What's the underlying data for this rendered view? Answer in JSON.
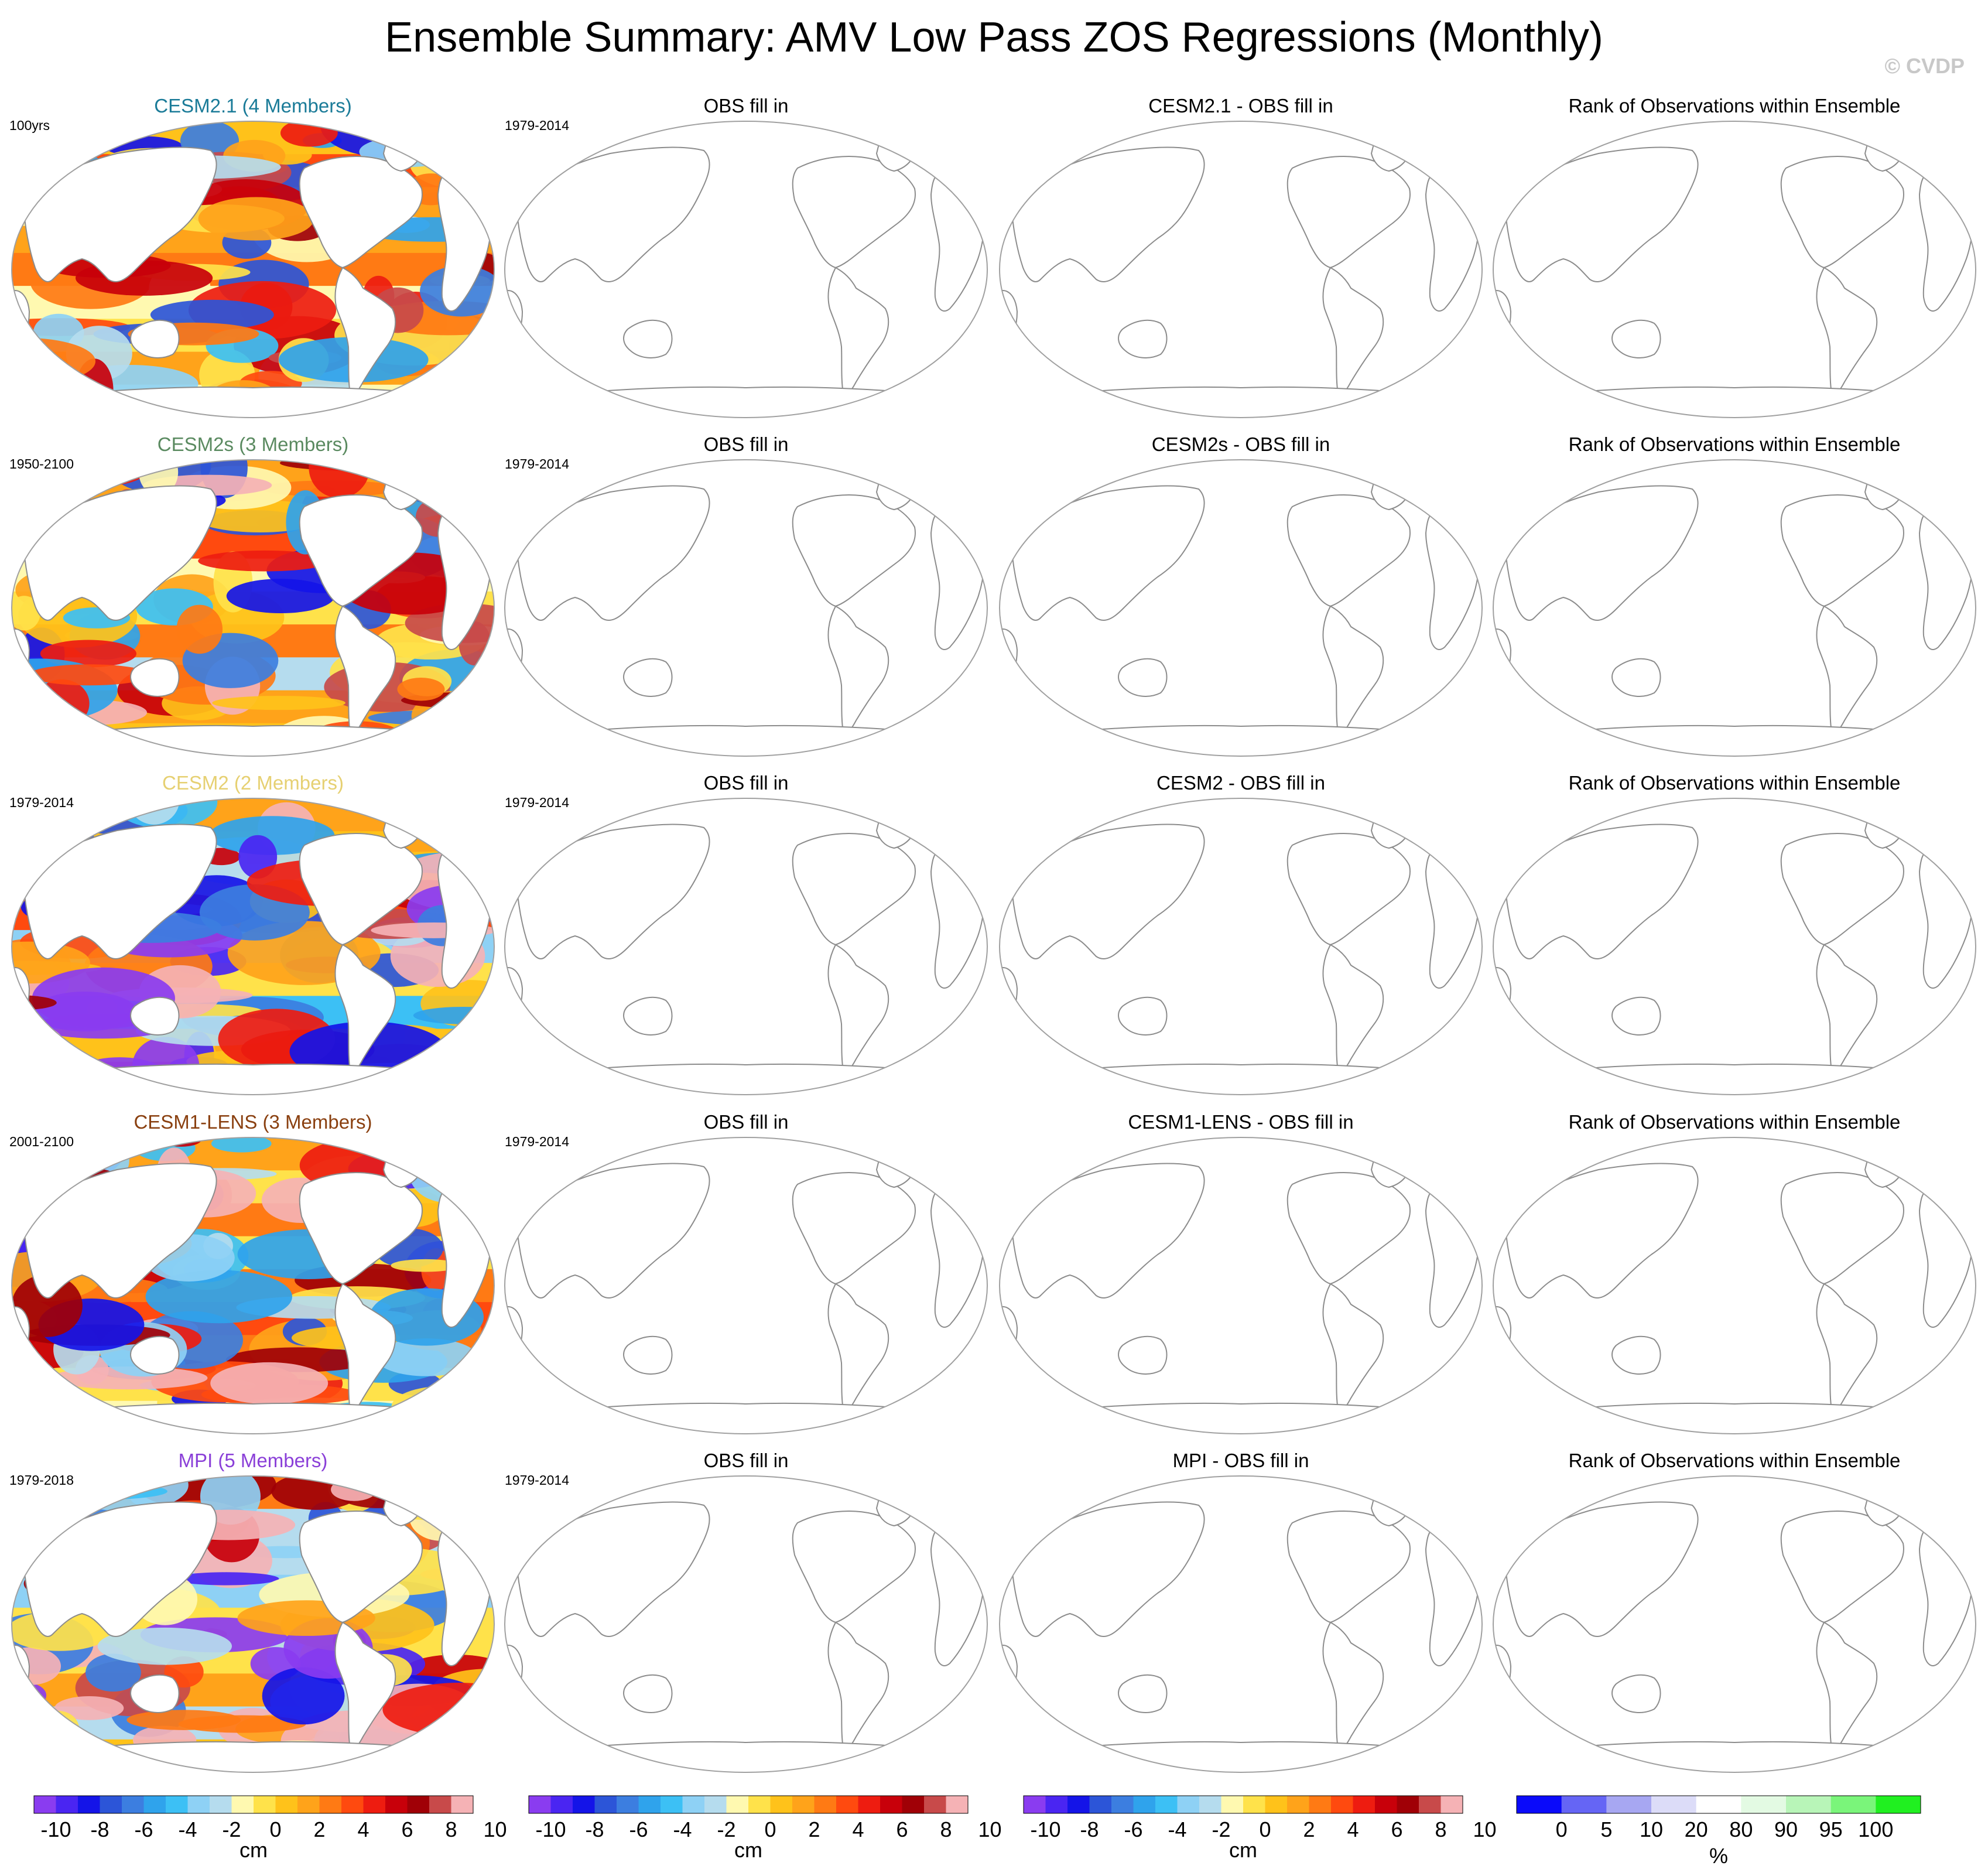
{
  "title": "Ensemble Summary: AMV Low Pass ZOS Regressions (Monthly)",
  "watermark": "© CVDP",
  "colors": {
    "palette": [
      "#8a3cf0",
      "#4a25f2",
      "#1414e8",
      "#2c55d8",
      "#3c7ee0",
      "#2fa3ec",
      "#3cc0f5",
      "#8ed1f5",
      "#b5dcee",
      "#fff9b0",
      "#ffe24a",
      "#ffc21a",
      "#ffa31a",
      "#ff7a14",
      "#ff4a0f",
      "#ee1c10",
      "#c8000a",
      "#a00006",
      "#c84a4a",
      "#f5b2b5"
    ],
    "rank_palette": [
      "#0a0afa",
      "#6565f5",
      "#a7a7f2",
      "#dcdcf8",
      "#ffffff",
      "#e3fae3",
      "#b8f5b8",
      "#7af57a",
      "#20f020"
    ],
    "model_titles": [
      "#1a7b98",
      "#5a8a60",
      "#e6d072",
      "#8a4010",
      "#8a3fd8"
    ]
  },
  "colorbars": [
    {
      "labels": [
        "-10",
        "-8",
        "-6",
        "-4",
        "-2",
        "0",
        "2",
        "4",
        "6",
        "8",
        "10"
      ],
      "unit": "cm"
    },
    {
      "labels": [
        "-10",
        "-8",
        "-6",
        "-4",
        "-2",
        "0",
        "2",
        "4",
        "6",
        "8",
        "10"
      ],
      "unit": "cm"
    },
    {
      "labels": [
        "-10",
        "-8",
        "-6",
        "-4",
        "-2",
        "0",
        "2",
        "4",
        "6",
        "8",
        "10"
      ],
      "unit": "cm"
    },
    {
      "labels": [
        "0",
        "5",
        "10",
        "20",
        "80",
        "90",
        "95",
        "100"
      ],
      "unit": "%"
    }
  ],
  "chart_data": {
    "type": "heatmap",
    "title": "Ensemble Summary: AMV Low Pass ZOS Regressions (Monthly)",
    "units": "cm",
    "contour_levels": [
      -10,
      -9,
      -8,
      -7,
      -6,
      -5,
      -4,
      -3,
      -2,
      -1,
      0,
      1,
      2,
      3,
      4,
      5,
      6,
      7,
      8,
      9,
      10
    ],
    "rank_levels": [
      0,
      5,
      10,
      20,
      80,
      90,
      95,
      100
    ],
    "obs_period": "1979-2014",
    "rows": [
      {
        "model": "CESM2.1 (4 Members)",
        "period": "100yrs",
        "panels": [
          "CESM2.1 (4 Members)",
          "OBS fill in",
          "CESM2.1 - OBS fill in",
          "Rank of Observations within Ensemble"
        ]
      },
      {
        "model": "CESM2s (3 Members)",
        "period": "1950-2100",
        "panels": [
          "CESM2s (3 Members)",
          "OBS fill in",
          "CESM2s - OBS fill in",
          "Rank of Observations within Ensemble"
        ]
      },
      {
        "model": "CESM2 (2 Members)",
        "period": "1979-2014",
        "panels": [
          "CESM2 (2 Members)",
          "OBS fill in",
          "CESM2 - OBS fill in",
          "Rank of Observations within Ensemble"
        ]
      },
      {
        "model": "CESM1-LENS (3 Members)",
        "period": "2001-2100",
        "panels": [
          "CESM1-LENS (3 Members)",
          "OBS fill in",
          "CESM1-LENS - OBS fill in",
          "Rank of Observations within Ensemble"
        ]
      },
      {
        "model": "MPI (5 Members)",
        "period": "1979-2018",
        "panels": [
          "MPI (5 Members)",
          "OBS fill in",
          "MPI - OBS fill in",
          "Rank of Observations within Ensemble"
        ]
      }
    ]
  }
}
